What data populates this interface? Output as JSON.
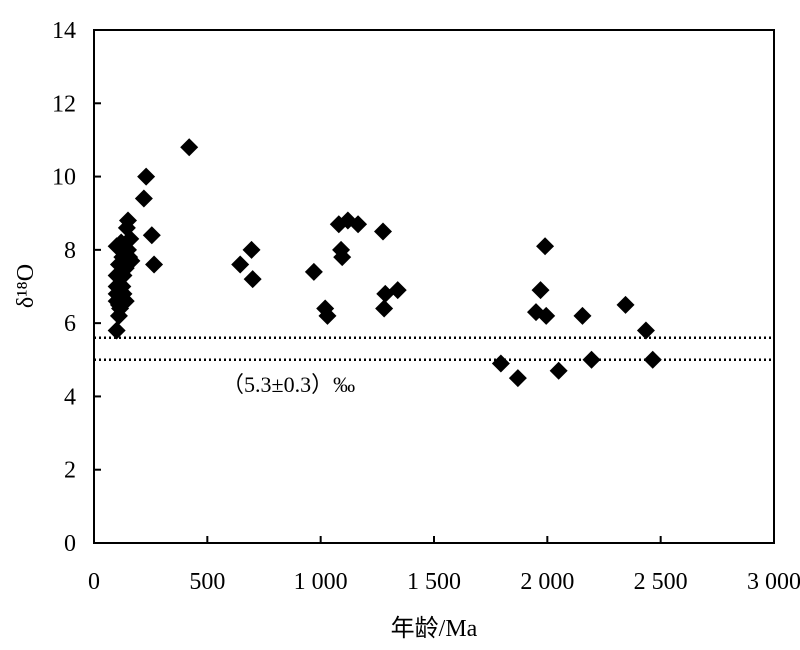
{
  "chart_data": {
    "type": "scatter",
    "xlabel": "年龄/Ma",
    "ylabel": "δ¹⁸O",
    "xlim": [
      0,
      3000
    ],
    "ylim": [
      0,
      14
    ],
    "grid": false,
    "x_ticks": [
      0,
      500,
      1000,
      1500,
      2000,
      2500,
      3000
    ],
    "x_tick_labels": [
      "0",
      "500",
      "1 000",
      "1 500",
      "2 000",
      "2 500",
      "3 000"
    ],
    "y_ticks": [
      0,
      2,
      4,
      6,
      8,
      10,
      12,
      14
    ],
    "y_tick_labels": [
      "0",
      "2",
      "4",
      "6",
      "8",
      "10",
      "12",
      "14"
    ],
    "reference_lines": [
      {
        "y": 5.6,
        "style": "dotted"
      },
      {
        "y": 5.0,
        "style": "dotted"
      }
    ],
    "annotation": "（5.3±0.3）‰",
    "marker": "diamond",
    "points": [
      {
        "x": 100,
        "y": 5.8
      },
      {
        "x": 100,
        "y": 6.6
      },
      {
        "x": 100,
        "y": 6.8
      },
      {
        "x": 100,
        "y": 7.0
      },
      {
        "x": 100,
        "y": 7.3
      },
      {
        "x": 100,
        "y": 8.1
      },
      {
        "x": 110,
        "y": 6.2
      },
      {
        "x": 110,
        "y": 6.5
      },
      {
        "x": 110,
        "y": 7.6
      },
      {
        "x": 115,
        "y": 6.4
      },
      {
        "x": 120,
        "y": 8.2
      },
      {
        "x": 125,
        "y": 7.0
      },
      {
        "x": 125,
        "y": 7.8
      },
      {
        "x": 130,
        "y": 6.8
      },
      {
        "x": 130,
        "y": 7.3
      },
      {
        "x": 130,
        "y": 8.0
      },
      {
        "x": 140,
        "y": 6.6
      },
      {
        "x": 140,
        "y": 7.5
      },
      {
        "x": 145,
        "y": 8.6
      },
      {
        "x": 150,
        "y": 8.0
      },
      {
        "x": 150,
        "y": 8.8
      },
      {
        "x": 155,
        "y": 7.8
      },
      {
        "x": 160,
        "y": 8.3
      },
      {
        "x": 165,
        "y": 7.7
      },
      {
        "x": 220,
        "y": 9.4
      },
      {
        "x": 230,
        "y": 10.0
      },
      {
        "x": 255,
        "y": 8.4
      },
      {
        "x": 265,
        "y": 7.6
      },
      {
        "x": 420,
        "y": 10.8
      },
      {
        "x": 645,
        "y": 7.6
      },
      {
        "x": 695,
        "y": 8.0
      },
      {
        "x": 700,
        "y": 7.2
      },
      {
        "x": 970,
        "y": 7.4
      },
      {
        "x": 1020,
        "y": 6.4
      },
      {
        "x": 1030,
        "y": 6.2
      },
      {
        "x": 1080,
        "y": 8.7
      },
      {
        "x": 1090,
        "y": 8.0
      },
      {
        "x": 1095,
        "y": 7.8
      },
      {
        "x": 1120,
        "y": 8.8
      },
      {
        "x": 1165,
        "y": 8.7
      },
      {
        "x": 1275,
        "y": 8.5
      },
      {
        "x": 1280,
        "y": 6.4
      },
      {
        "x": 1285,
        "y": 6.8
      },
      {
        "x": 1340,
        "y": 6.9
      },
      {
        "x": 1795,
        "y": 4.9
      },
      {
        "x": 1870,
        "y": 4.5
      },
      {
        "x": 1950,
        "y": 6.3
      },
      {
        "x": 1970,
        "y": 6.9
      },
      {
        "x": 1990,
        "y": 8.1
      },
      {
        "x": 1995,
        "y": 6.2
      },
      {
        "x": 2050,
        "y": 4.7
      },
      {
        "x": 2155,
        "y": 6.2
      },
      {
        "x": 2195,
        "y": 5.0
      },
      {
        "x": 2345,
        "y": 6.5
      },
      {
        "x": 2435,
        "y": 5.8
      },
      {
        "x": 2465,
        "y": 5.0
      }
    ]
  }
}
